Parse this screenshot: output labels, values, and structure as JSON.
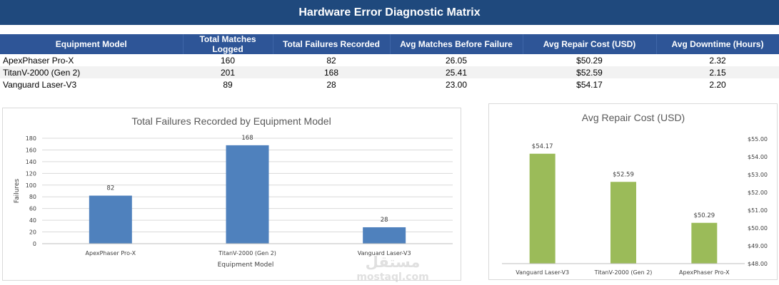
{
  "header": {
    "title": "Hardware Error Diagnostic Matrix"
  },
  "table": {
    "columns": [
      "Equipment Model",
      "Total Matches Logged",
      "Total Failures Recorded",
      "Avg Matches Before Failure",
      "Avg Repair Cost (USD)",
      "Avg Downtime (Hours)"
    ],
    "rows": [
      [
        "ApexPhaser Pro-X",
        "160",
        "82",
        "26.05",
        "$50.29",
        "2.32"
      ],
      [
        "TitanV-2000 (Gen 2)",
        "201",
        "168",
        "25.41",
        "$52.59",
        "2.15"
      ],
      [
        "Vanguard Laser-V3",
        "89",
        "28",
        "23.00",
        "$54.17",
        "2.20"
      ]
    ]
  },
  "chart_data": [
    {
      "type": "bar",
      "title": "Total Failures Recorded by Equipment Model",
      "categories": [
        "ApexPhaser Pro-X",
        "TitanV-2000 (Gen 2)",
        "Vanguard Laser-V3"
      ],
      "values": [
        82,
        168,
        28
      ],
      "data_labels": [
        "82",
        "168",
        "28"
      ],
      "xlabel": "Equipment Model",
      "ylabel": "Failures",
      "ylim": [
        0,
        180
      ],
      "yticks": [
        "0",
        "20",
        "40",
        "60",
        "80",
        "100",
        "120",
        "140",
        "160",
        "180"
      ],
      "color": "#4f81bd",
      "grid": true,
      "legend": "none"
    },
    {
      "type": "bar",
      "title": "Avg Repair Cost (USD)",
      "categories": [
        "Vanguard Laser-V3",
        "TitanV-2000 (Gen 2)",
        "ApexPhaser Pro-X"
      ],
      "values": [
        54.17,
        52.59,
        50.29
      ],
      "data_labels": [
        "$54.17",
        "$52.59",
        "$50.29"
      ],
      "ylim": [
        48,
        55
      ],
      "yticks": [
        "$48.00",
        "$49.00",
        "$50.00",
        "$51.00",
        "$52.00",
        "$53.00",
        "$54.00",
        "$55.00"
      ],
      "y_axis_position": "right",
      "color": "#9bbb59",
      "grid": false,
      "legend": "none"
    }
  ],
  "watermark": {
    "arabic": "مستقل",
    "latin": "mostaql.com"
  }
}
